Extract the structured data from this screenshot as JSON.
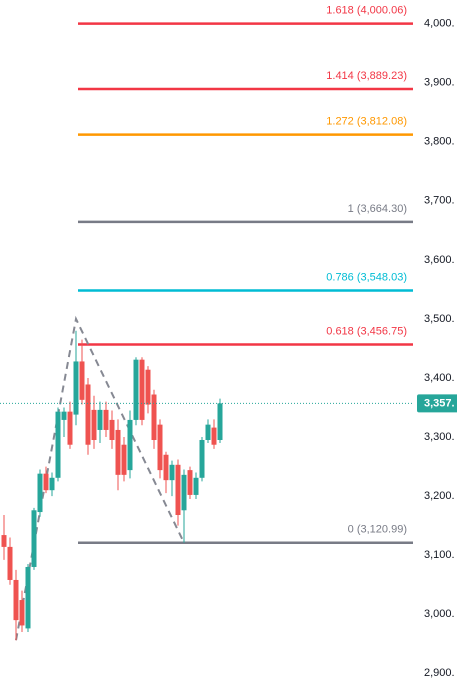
{
  "chart_data": {
    "type": "candlestick",
    "up_color": "#26a69a",
    "down_color": "#ef5350",
    "open": [
      3134,
      3114,
      3058,
      3024,
      2976,
      3080,
      3173,
      3238,
      3210,
      3231,
      3329,
      3343,
      3338,
      3428,
      3389,
      3346,
      3312,
      3346,
      3329,
      3312,
      3287,
      3244,
      3329,
      3431,
      3414,
      3372,
      3321,
      3270,
      3227,
      3253,
      3176,
      3244,
      3202,
      3231,
      3295,
      3316,
      3295
    ],
    "high": [
      3168,
      3130,
      3075,
      3040,
      3085,
      3180,
      3245,
      3250,
      3240,
      3350,
      3350,
      3360,
      3480,
      3465,
      3400,
      3370,
      3360,
      3360,
      3345,
      3330,
      3300,
      3345,
      3435,
      3435,
      3420,
      3380,
      3330,
      3275,
      3260,
      3262,
      3245,
      3250,
      3240,
      3300,
      3330,
      3330,
      3365
    ],
    "low": [
      3092,
      3050,
      2956,
      2970,
      2970,
      3075,
      3165,
      3205,
      3200,
      3225,
      3300,
      3280,
      3320,
      3355,
      3270,
      3280,
      3290,
      3300,
      3280,
      3210,
      3225,
      3230,
      3320,
      3320,
      3340,
      3280,
      3230,
      3205,
      3200,
      3150,
      3121,
      3195,
      3195,
      3225,
      3290,
      3280,
      3290
    ],
    "close": [
      3114,
      3058,
      2990,
      2981,
      3080,
      3176,
      3238,
      3210,
      3231,
      3343,
      3343,
      3287,
      3428,
      3363,
      3287,
      3295,
      3346,
      3312,
      3295,
      3236,
      3236,
      3329,
      3431,
      3329,
      3355,
      3295,
      3244,
      3227,
      3253,
      3168,
      3236,
      3202,
      3231,
      3295,
      3321,
      3287,
      3357
    ],
    "ylim": [
      2870,
      4040
    ],
    "yticks": [
      {
        "value": 4000,
        "label": "4,000."
      },
      {
        "value": 3900,
        "label": "3,900."
      },
      {
        "value": 3800,
        "label": "3,800."
      },
      {
        "value": 3700,
        "label": "3,700."
      },
      {
        "value": 3600,
        "label": "3,600."
      },
      {
        "value": 3500,
        "label": "3,500."
      },
      {
        "value": 3400,
        "label": "3,400."
      },
      {
        "value": 3300,
        "label": "3,300."
      },
      {
        "value": 3200,
        "label": "3,200."
      },
      {
        "value": 3100,
        "label": "3,100."
      },
      {
        "value": 3000,
        "label": "3,000."
      },
      {
        "value": 2900,
        "label": "2,900."
      }
    ],
    "fib_levels": [
      {
        "value": 4000.06,
        "label": "1.618 (4,000.06)",
        "color": "#f23645"
      },
      {
        "value": 3889.23,
        "label": "1.414 (3,889.23)",
        "color": "#f23645"
      },
      {
        "value": 3812.08,
        "label": "1.272 (3,812.08)",
        "color": "#ff9800"
      },
      {
        "value": 3664.3,
        "label": "1 (3,664.30)",
        "color": "#787b86"
      },
      {
        "value": 3548.03,
        "label": "0.786 (3,548.03)",
        "color": "#00bcd4"
      },
      {
        "value": 3456.75,
        "label": "0.618 (3,456.75)",
        "color": "#f23645"
      },
      {
        "value": 3120.99,
        "label": "0 (3,120.99)",
        "color": "#787b86"
      }
    ],
    "zigzag": [
      2956,
      3500,
      3120.99
    ],
    "last_price": {
      "value": 3357,
      "label": "3,357."
    }
  }
}
